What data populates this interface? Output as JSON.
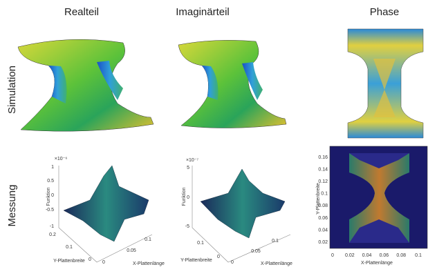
{
  "columns": [
    "Realteil",
    "Imaginärteil",
    "Phase"
  ],
  "rows": [
    "Simulation",
    "Messung"
  ],
  "plots": [
    {
      "exponent": "×10⁻⁶",
      "z_label": "Funktion",
      "z_ticks": [
        "1",
        "0.5",
        "0",
        "-0.5",
        "-1"
      ],
      "y_label": "Y-Plattenbreite",
      "y_ticks": [
        "0.2",
        "0.1",
        "0"
      ],
      "x_label": "X-Plattenlänge",
      "x_ticks": [
        "0",
        "0.05",
        "0.1"
      ]
    },
    {
      "exponent": "×10⁻⁷",
      "z_label": "Funktion",
      "z_ticks": [
        "5",
        "0",
        "-5"
      ],
      "y_label": "Y-Plattenbreite",
      "y_ticks": [
        "0.1",
        "0"
      ],
      "x_label": "X-Plattenlänge",
      "x_ticks": [
        "0",
        "0.05",
        "0.1"
      ]
    },
    {
      "y_label": "Y-Plattenbreite",
      "y_ticks": [
        "0.16",
        "0.14",
        "0.12",
        "0.1",
        "0.08",
        "0.06",
        "0.04",
        "0.02"
      ],
      "x_label": "X-Plattenlänge",
      "x_ticks": [
        "0",
        "0.02",
        "0.04",
        "0.06",
        "0.08",
        "0.1"
      ]
    }
  ]
}
